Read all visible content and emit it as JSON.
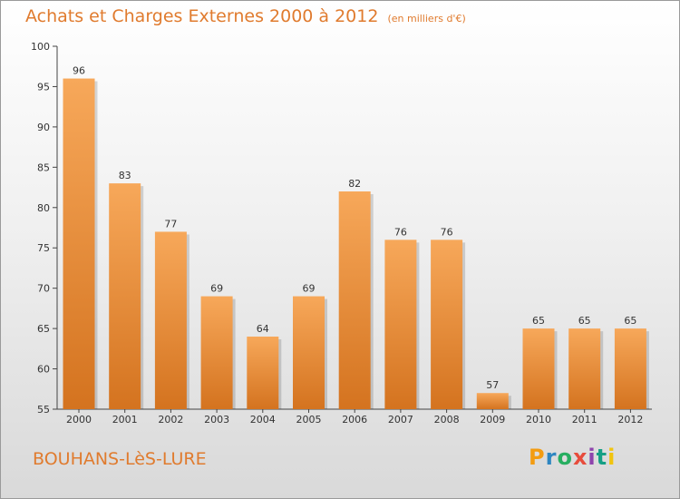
{
  "title": "Achats et Charges Externes 2000 à 2012",
  "subtitle": "(en milliers d'€)",
  "commune": "BOUHANS-LèS-LURE",
  "logo": {
    "letters": [
      "P",
      "r",
      "o",
      "x",
      "i",
      "t",
      "i"
    ],
    "colors": [
      "#f39c12",
      "#2e86c1",
      "#27ae60",
      "#e74c3c",
      "#8e44ad",
      "#16a085",
      "#f1c40f"
    ]
  },
  "colors": {
    "bar_light": "#f7a85a",
    "bar_dark": "#d4731f",
    "text_accent": "#e07b2e"
  },
  "chart_data": {
    "type": "bar",
    "title": "Achats et Charges Externes 2000 à 2012",
    "subtitle": "(en milliers d'€)",
    "xlabel": "",
    "ylabel": "",
    "categories": [
      "2000",
      "2001",
      "2002",
      "2003",
      "2004",
      "2005",
      "2006",
      "2007",
      "2008",
      "2009",
      "2010",
      "2011",
      "2012"
    ],
    "values": [
      96,
      83,
      77,
      69,
      64,
      69,
      82,
      76,
      76,
      57,
      65,
      65,
      65
    ],
    "ylim": [
      55,
      100
    ],
    "yticks": [
      55,
      60,
      65,
      70,
      75,
      80,
      85,
      90,
      95,
      100
    ],
    "grid": false,
    "legend": "none"
  }
}
